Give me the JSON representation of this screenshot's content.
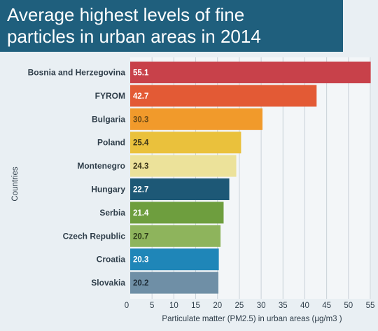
{
  "header": {
    "title_line1": "Average highest levels of fine",
    "title_line2": "particles in urban areas in 2014"
  },
  "colors": {
    "header_bg": "#1f5f7d",
    "grid": "#c8d1d8"
  },
  "chart_data": {
    "type": "bar",
    "orientation": "horizontal",
    "title": "Average highest levels of fine particles in urban areas in 2014",
    "xlabel": "Particulate matter (PM2.5) in urban areas (µg/m3 )",
    "ylabel": "Countries",
    "xlim": [
      0,
      55
    ],
    "xticks": [
      0,
      5,
      10,
      15,
      20,
      25,
      30,
      35,
      40,
      45,
      50,
      55
    ],
    "grid": true,
    "categories": [
      "Bosnia and Herzegovina",
      "FYROM",
      "Bulgaria",
      "Poland",
      "Montenegro",
      "Hungary",
      "Serbia",
      "Czech Republic",
      "Croatia",
      "Slovakia"
    ],
    "values": [
      55.1,
      42.7,
      30.3,
      25.4,
      24.3,
      22.7,
      21.4,
      20.7,
      20.3,
      20.2
    ],
    "value_labels": [
      "55.1",
      "42.7",
      "30.3",
      "25.4",
      "24.3",
      "22.7",
      "21.4",
      "20.7",
      "20.3",
      "20.2"
    ],
    "bar_colors": [
      "#c8414a",
      "#e35a35",
      "#f19a2b",
      "#eac13c",
      "#ece29a",
      "#1d5876",
      "#6e9e3e",
      "#8eb45c",
      "#1f86b8",
      "#6f8fa6"
    ],
    "label_colors": [
      "#ffffff",
      "#ffffff",
      "#6b4a16",
      "#3a3418",
      "#3a3418",
      "#ffffff",
      "#ffffff",
      "#2c3a18",
      "#ffffff",
      "#1c2a35"
    ]
  }
}
